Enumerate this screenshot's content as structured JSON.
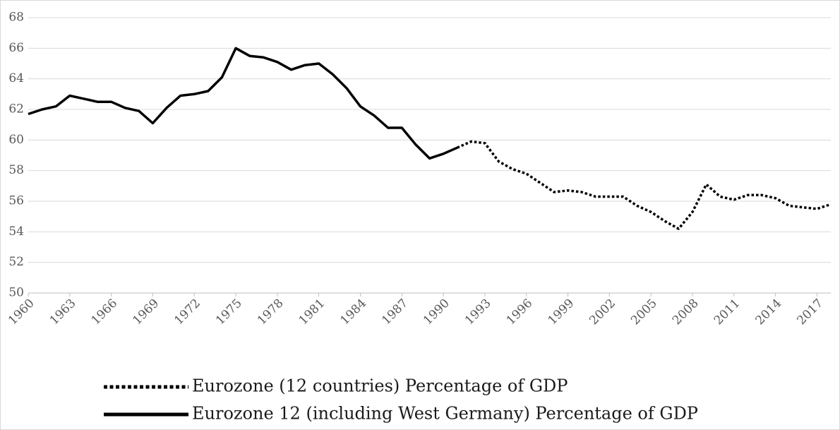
{
  "chart_data": {
    "type": "line",
    "x": [
      1960,
      1961,
      1962,
      1963,
      1964,
      1965,
      1966,
      1967,
      1968,
      1969,
      1970,
      1971,
      1972,
      1973,
      1974,
      1975,
      1976,
      1977,
      1978,
      1979,
      1980,
      1981,
      1982,
      1983,
      1984,
      1985,
      1986,
      1987,
      1988,
      1989,
      1990,
      1991,
      1992,
      1993,
      1994,
      1995,
      1996,
      1997,
      1998,
      1999,
      2000,
      2001,
      2002,
      2003,
      2004,
      2005,
      2006,
      2007,
      2008,
      2009,
      2010,
      2011,
      2012,
      2013,
      2014,
      2015,
      2016,
      2017,
      2018
    ],
    "series": [
      {
        "name": "Eurozone (12 countries) Percentage of GDP",
        "color": "#000000",
        "dash": "dotted",
        "values": [
          null,
          null,
          null,
          null,
          null,
          null,
          null,
          null,
          null,
          null,
          null,
          null,
          null,
          null,
          null,
          null,
          null,
          null,
          null,
          null,
          null,
          null,
          null,
          null,
          null,
          null,
          null,
          null,
          null,
          null,
          null,
          59.5,
          59.9,
          59.8,
          58.6,
          58.1,
          57.8,
          57.2,
          56.6,
          56.7,
          56.6,
          56.3,
          56.3,
          56.3,
          55.7,
          55.3,
          54.7,
          54.2,
          55.3,
          57.1,
          56.3,
          56.1,
          56.4,
          56.4,
          56.2,
          55.7,
          55.6,
          55.5,
          55.8
        ]
      },
      {
        "name": "Eurozone 12 (including West Germany) Percentage of GDP",
        "color": "#000000",
        "dash": "solid",
        "values": [
          61.7,
          62.0,
          62.2,
          62.9,
          62.7,
          62.5,
          62.5,
          62.1,
          61.9,
          61.1,
          62.1,
          62.9,
          63.0,
          63.2,
          64.1,
          66.0,
          65.5,
          65.4,
          65.1,
          64.6,
          64.9,
          65.0,
          64.3,
          63.4,
          62.2,
          61.6,
          60.8,
          60.8,
          59.7,
          58.8,
          59.1,
          59.5,
          null,
          null,
          null,
          null,
          null,
          null,
          null,
          null,
          null,
          null,
          null,
          null,
          null,
          null,
          null,
          null,
          null,
          null,
          null,
          null,
          null,
          null,
          null,
          null,
          null,
          null,
          null
        ]
      }
    ],
    "xlim": [
      1960,
      2018
    ],
    "xticks": [
      1960,
      1963,
      1966,
      1969,
      1972,
      1975,
      1978,
      1981,
      1984,
      1987,
      1990,
      1993,
      1996,
      1999,
      2002,
      2005,
      2008,
      2011,
      2014,
      2017
    ],
    "ylim": [
      50,
      68
    ],
    "yticks": [
      50,
      52,
      54,
      56,
      58,
      60,
      62,
      64,
      66,
      68
    ],
    "grid": true,
    "legend": "bottom"
  }
}
